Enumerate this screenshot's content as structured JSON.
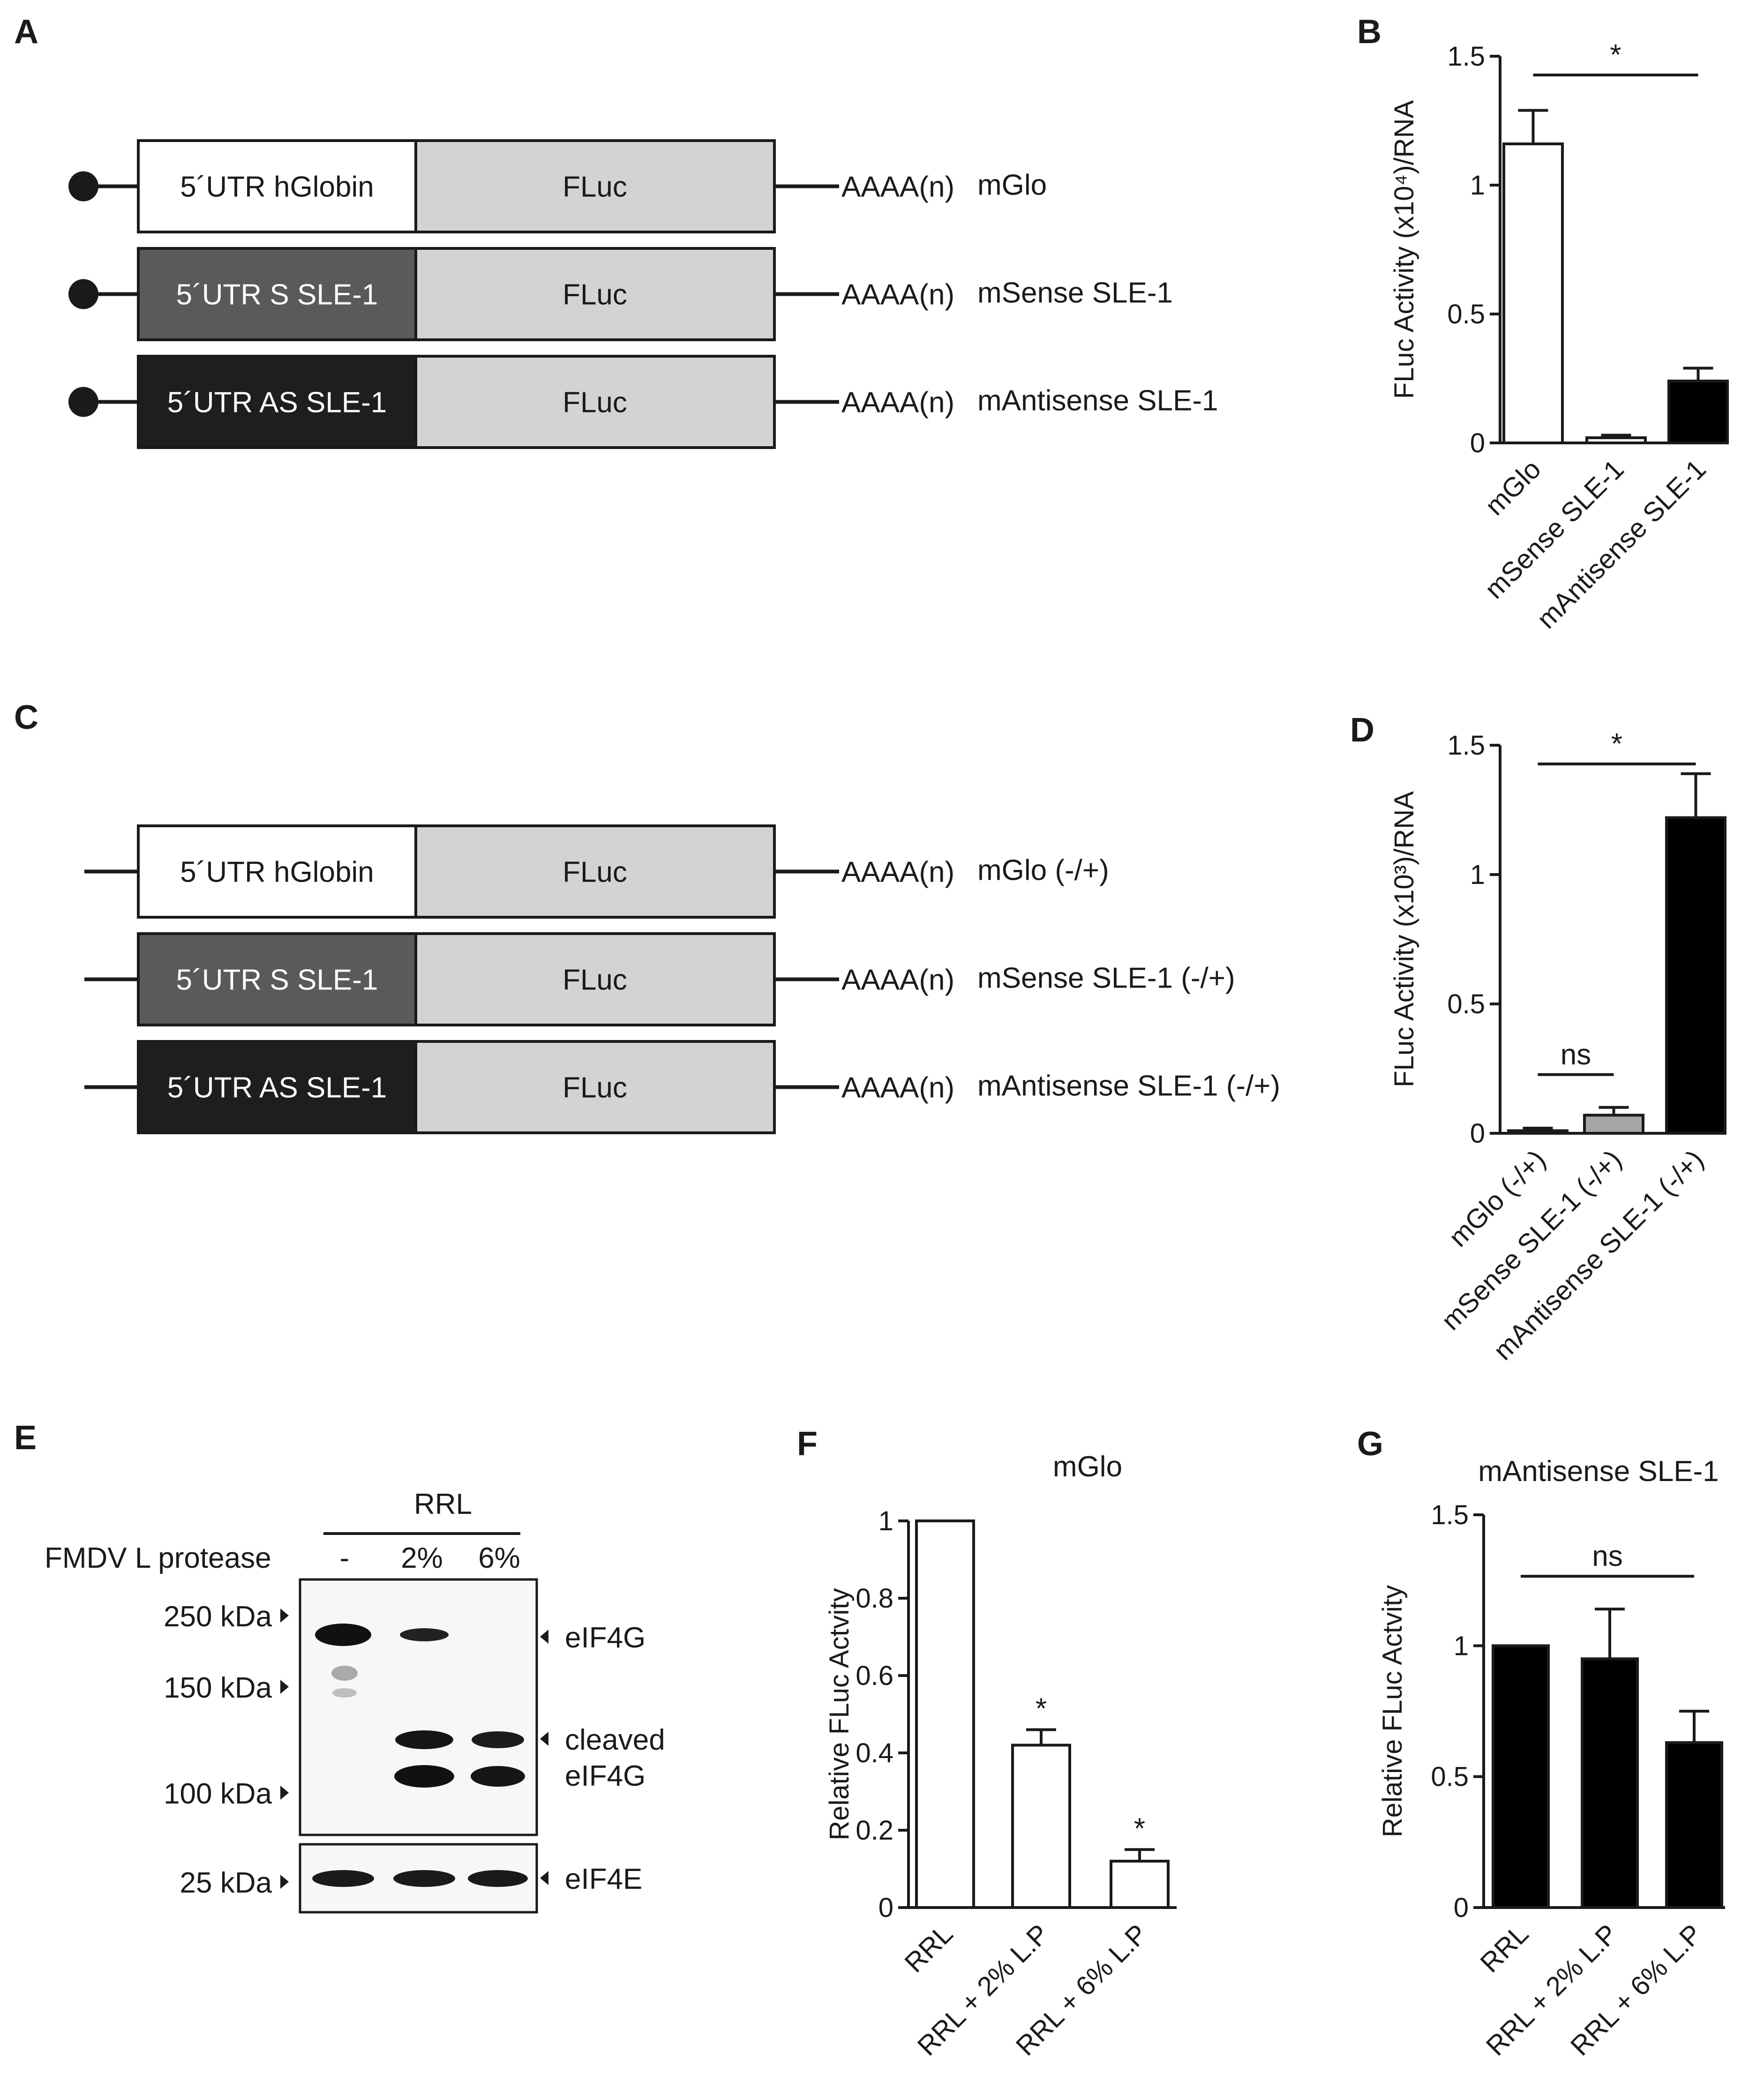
{
  "panels": {
    "A": {
      "letter": "A",
      "rows": [
        {
          "utr": "5´UTR hGlobin",
          "orf": "FLuc",
          "tail": "AAAA(n)",
          "name": "mGlo",
          "utr_color": "#ffffff",
          "utr_text_color": "#1a1a1a",
          "cap": true
        },
        {
          "utr": "5´UTR S SLE-1",
          "orf": "FLuc",
          "tail": "AAAA(n)",
          "name": "mSense SLE-1",
          "utr_color": "#5a5a5a",
          "utr_text_color": "#ffffff",
          "cap": true
        },
        {
          "utr": "5´UTR AS SLE-1",
          "orf": "FLuc",
          "tail": "AAAA(n)",
          "name": "mAntisense SLE-1",
          "utr_color": "#1e1e1e",
          "utr_text_color": "#ffffff",
          "cap": true
        }
      ]
    },
    "C": {
      "letter": "C",
      "rows": [
        {
          "utr": "5´UTR hGlobin",
          "orf": "FLuc",
          "tail": "AAAA(n)",
          "name": "mGlo (-/+)",
          "utr_color": "#ffffff",
          "utr_text_color": "#1a1a1a",
          "cap": false
        },
        {
          "utr": "5´UTR S SLE-1",
          "orf": "FLuc",
          "tail": "AAAA(n)",
          "name": "mSense SLE-1 (-/+)",
          "utr_color": "#5a5a5a",
          "utr_text_color": "#ffffff",
          "cap": false
        },
        {
          "utr": "5´UTR AS SLE-1",
          "orf": "FLuc",
          "tail": "AAAA(n)",
          "name": "mAntisense SLE-1 (-/+)",
          "utr_color": "#1e1e1e",
          "utr_text_color": "#ffffff",
          "cap": false
        }
      ]
    },
    "E": {
      "letter": "E",
      "group_label": "RRL",
      "row_label": "FMDV L protease",
      "lanes": [
        "-",
        "2%",
        "6%"
      ],
      "markers": [
        "250 kDa",
        "150 kDa",
        "100 kDa",
        "25 kDa"
      ],
      "bands": [
        "eIF4G",
        "cleaved",
        "eIF4G",
        "eIF4E"
      ]
    }
  },
  "chart_data": [
    {
      "panel": "B",
      "type": "bar",
      "title": "",
      "ylabel": "FLuc Activity (x10⁴)/RNA",
      "categories": [
        "mGlo",
        "mSense SLE-1",
        "mAntisense SLE-1"
      ],
      "values": [
        1.16,
        0.02,
        0.24
      ],
      "errors": [
        0.13,
        0.01,
        0.05
      ],
      "bar_colors": [
        "#ffffff",
        "#ffffff",
        "#000000"
      ],
      "ylim": [
        0,
        1.5
      ],
      "yticks": [
        "0",
        "0.5",
        "1",
        "1.5"
      ],
      "ytick_values": [
        0,
        0.5,
        1,
        1.5
      ],
      "annotations": [
        {
          "text": "*",
          "from": 0,
          "to": 2
        }
      ]
    },
    {
      "panel": "D",
      "type": "bar",
      "title": "",
      "ylabel": "FLuc Activity (x10³)/RNA",
      "categories": [
        "mGlo (-/+)",
        "mSense SLE-1 (-/+)",
        "mAntisense SLE-1 (-/+)"
      ],
      "values": [
        0.01,
        0.07,
        1.22
      ],
      "errors": [
        0.01,
        0.03,
        0.17
      ],
      "bar_colors": [
        "#ffffff",
        "#a6a6a6",
        "#000000"
      ],
      "ylim": [
        0,
        1.5
      ],
      "yticks": [
        "0",
        "0.5",
        "1",
        "1.5"
      ],
      "ytick_values": [
        0,
        0.5,
        1,
        1.5
      ],
      "annotations": [
        {
          "text": "*",
          "from": 0,
          "to": 2
        },
        {
          "text": "ns",
          "from": 0,
          "to": 1
        }
      ]
    },
    {
      "panel": "F",
      "type": "bar",
      "title": "mGlo",
      "ylabel": "Relative FLuc Actvity",
      "categories": [
        "RRL",
        "RRL + 2% L.P",
        "RRL + 6% L.P"
      ],
      "values": [
        1.0,
        0.42,
        0.12
      ],
      "errors": [
        0,
        0.04,
        0.03
      ],
      "bar_colors": [
        "#ffffff",
        "#ffffff",
        "#ffffff"
      ],
      "ylim": [
        0,
        1
      ],
      "yticks": [
        "0",
        "0.2",
        "0.4",
        "0.6",
        "0.8",
        "1"
      ],
      "ytick_values": [
        0,
        0.2,
        0.4,
        0.6,
        0.8,
        1
      ],
      "stars": [
        "",
        "*",
        "*"
      ]
    },
    {
      "panel": "G",
      "type": "bar",
      "title": "mAntisense SLE-1",
      "ylabel": "Relative FLuc Actvity",
      "categories": [
        "RRL",
        "RRL + 2% L.P",
        "RRL + 6% L.P"
      ],
      "values": [
        1.0,
        0.95,
        0.63
      ],
      "errors": [
        0,
        0.19,
        0.12
      ],
      "bar_colors": [
        "#000000",
        "#000000",
        "#000000"
      ],
      "ylim": [
        0,
        1.5
      ],
      "yticks": [
        "0",
        "0.5",
        "1",
        "1.5"
      ],
      "ytick_values": [
        0,
        0.5,
        1,
        1.5
      ],
      "annotations": [
        {
          "text": "ns",
          "from": 0,
          "to": 2
        }
      ]
    }
  ]
}
